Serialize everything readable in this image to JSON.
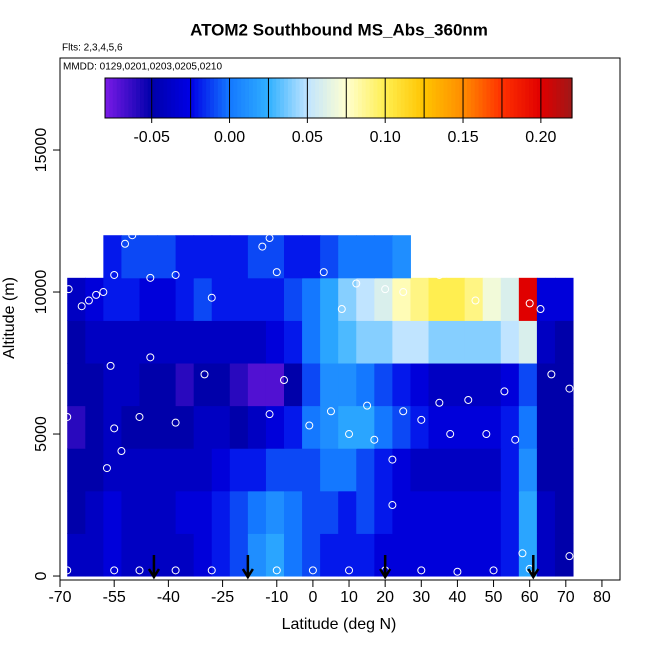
{
  "chart_data": {
    "type": "heatmap",
    "title": "ATOM2 Southbound MS_Abs_360nm",
    "subtitle": "Flts: 2,3,4,5,6",
    "annotation": "MMDD: 0129,0201,0203,0205,0210",
    "x_label": "Latitude (deg N)",
    "y_label": "Altitude (m)",
    "xlim": [
      -70,
      85
    ],
    "ylim": [
      -140,
      18240
    ],
    "xticks": [
      -70,
      -55,
      -40,
      -25,
      -10,
      0,
      10,
      20,
      30,
      40,
      50,
      60,
      70,
      80
    ],
    "yticks": [
      0,
      5000,
      10000,
      15000
    ],
    "clim": [
      -0.08,
      0.22
    ],
    "cticks": [
      -0.05,
      {
        "value": 0,
        "label": "0.00"
      },
      0.05,
      {
        "value": 0.1,
        "label": "0.10"
      },
      0.15,
      {
        "value": 0.2,
        "label": "0.20"
      }
    ],
    "colorscale": [
      [
        -0.08,
        "#7a1ae6"
      ],
      [
        -0.05,
        "#0000aa"
      ],
      [
        -0.025,
        "#0000e6"
      ],
      [
        0,
        "#1478ff"
      ],
      [
        0.025,
        "#30b0ff"
      ],
      [
        0.05,
        "#c0e4ff"
      ],
      [
        0.075,
        "#ffffd0"
      ],
      [
        0.1,
        "#ffee50"
      ],
      [
        0.125,
        "#ffc400"
      ],
      [
        0.15,
        "#ff8c00"
      ],
      [
        0.175,
        "#ff3000"
      ],
      [
        0.2,
        "#e00000"
      ],
      [
        0.22,
        "#a01818"
      ]
    ],
    "lat_edges": [
      -68,
      -63,
      -58,
      -53,
      -48,
      -43,
      -38,
      -33,
      -28,
      -23,
      -18,
      -13,
      -8,
      -3,
      2,
      7,
      12,
      17,
      22,
      27,
      32,
      37,
      42,
      47,
      52,
      57,
      62,
      67,
      72
    ],
    "alt_edges": [
      0,
      1500,
      3000,
      4500,
      6000,
      7500,
      9000,
      10500,
      12000
    ],
    "z": [
      [
        -0.04,
        -0.04,
        -0.03,
        -0.04,
        -0.04,
        -0.04,
        -0.04,
        -0.03,
        -0.02,
        -0.01,
        0.01,
        0.02,
        0.0,
        -0.01,
        -0.02,
        -0.02,
        -0.02,
        -0.03,
        -0.03,
        -0.03,
        -0.03,
        -0.03,
        -0.03,
        -0.03,
        -0.02,
        0.02,
        -0.04,
        -0.05
      ],
      [
        -0.05,
        -0.04,
        -0.03,
        -0.04,
        -0.04,
        -0.04,
        -0.03,
        -0.03,
        -0.02,
        -0.01,
        0.0,
        0.01,
        0.0,
        -0.01,
        -0.01,
        -0.02,
        -0.01,
        -0.02,
        -0.03,
        -0.03,
        -0.03,
        -0.03,
        -0.03,
        -0.03,
        -0.02,
        0.02,
        -0.04,
        -0.05
      ],
      [
        -0.05,
        -0.05,
        -0.04,
        -0.04,
        -0.04,
        -0.04,
        -0.04,
        -0.04,
        -0.03,
        -0.02,
        -0.02,
        -0.01,
        -0.01,
        -0.01,
        0.0,
        0.0,
        -0.01,
        -0.02,
        -0.03,
        -0.04,
        -0.04,
        -0.04,
        -0.04,
        -0.04,
        -0.02,
        0.01,
        -0.05,
        -0.05
      ],
      [
        -0.06,
        -0.05,
        -0.04,
        -0.05,
        -0.05,
        -0.05,
        -0.05,
        -0.04,
        -0.04,
        -0.05,
        -0.04,
        -0.03,
        -0.02,
        0.0,
        0.01,
        0.02,
        0.02,
        0.0,
        -0.01,
        -0.02,
        -0.03,
        -0.03,
        -0.03,
        -0.03,
        -0.02,
        0.0,
        -0.05,
        -0.05
      ],
      [
        -0.05,
        -0.05,
        -0.04,
        -0.04,
        -0.05,
        -0.05,
        -0.06,
        -0.05,
        -0.05,
        -0.06,
        -0.07,
        -0.07,
        -0.05,
        -0.01,
        0.01,
        0.01,
        0.0,
        -0.01,
        -0.02,
        -0.03,
        -0.04,
        -0.04,
        -0.04,
        -0.04,
        -0.03,
        -0.01,
        -0.05,
        -0.05
      ],
      [
        -0.05,
        -0.04,
        -0.04,
        -0.04,
        -0.04,
        -0.04,
        -0.04,
        -0.04,
        -0.04,
        -0.04,
        -0.04,
        -0.03,
        -0.02,
        0.0,
        0.02,
        0.03,
        0.04,
        0.04,
        0.05,
        0.05,
        0.04,
        0.04,
        0.04,
        0.04,
        0.05,
        0.06,
        -0.04,
        -0.05
      ],
      [
        -0.04,
        -0.03,
        -0.02,
        -0.02,
        -0.03,
        -0.03,
        -0.02,
        -0.01,
        -0.02,
        -0.02,
        -0.02,
        -0.02,
        -0.01,
        0.0,
        0.02,
        0.04,
        0.05,
        0.06,
        0.08,
        0.09,
        0.1,
        0.1,
        0.09,
        0.07,
        0.06,
        0.2,
        -0.03,
        -0.03
      ],
      [
        null,
        null,
        -0.02,
        -0.01,
        -0.01,
        -0.01,
        -0.02,
        -0.02,
        -0.02,
        -0.02,
        -0.01,
        -0.01,
        -0.02,
        -0.02,
        -0.01,
        0.0,
        0.0,
        0.0,
        0.01,
        null,
        null,
        null,
        null,
        null,
        null,
        null,
        null,
        null
      ]
    ],
    "points": {
      "x": [
        -67.6,
        -64,
        -62,
        -60,
        -58,
        -55,
        -52,
        -50,
        -47,
        -45,
        -38,
        -28,
        -14,
        -12,
        -10,
        3,
        8,
        12,
        20,
        25,
        35,
        45,
        60,
        63,
        67,
        70,
        -56,
        -45,
        -30,
        -8,
        15,
        25,
        35,
        43,
        53,
        66,
        71,
        -68,
        -55,
        -53,
        -48,
        -38,
        -12,
        -1,
        5,
        10,
        17,
        22,
        30,
        38,
        48,
        56,
        -57,
        22,
        58,
        71,
        -68,
        -55,
        -48,
        -38,
        -28,
        -10,
        0,
        10,
        20,
        30,
        40,
        50,
        60
      ],
      "y": [
        10100,
        9500,
        9700,
        9900,
        10000,
        10600,
        11700,
        12000,
        12200,
        10500,
        10600,
        9800,
        11600,
        11900,
        10700,
        10700,
        9400,
        10300,
        10100,
        10000,
        10600,
        9700,
        9600,
        9400,
        11300,
        11300,
        7400,
        7700,
        7100,
        6900,
        6000,
        5800,
        6100,
        6200,
        6500,
        7100,
        6600,
        5600,
        5200,
        4400,
        5600,
        5400,
        5700,
        5300,
        5800,
        5000,
        4800,
        4100,
        5500,
        5000,
        5000,
        4800,
        3800,
        2500,
        800,
        700,
        200,
        200,
        200,
        200,
        200,
        200,
        200,
        200,
        200,
        200,
        150,
        200,
        250
      ]
    },
    "arrows_x": [
      -44,
      -18,
      20,
      61
    ]
  }
}
